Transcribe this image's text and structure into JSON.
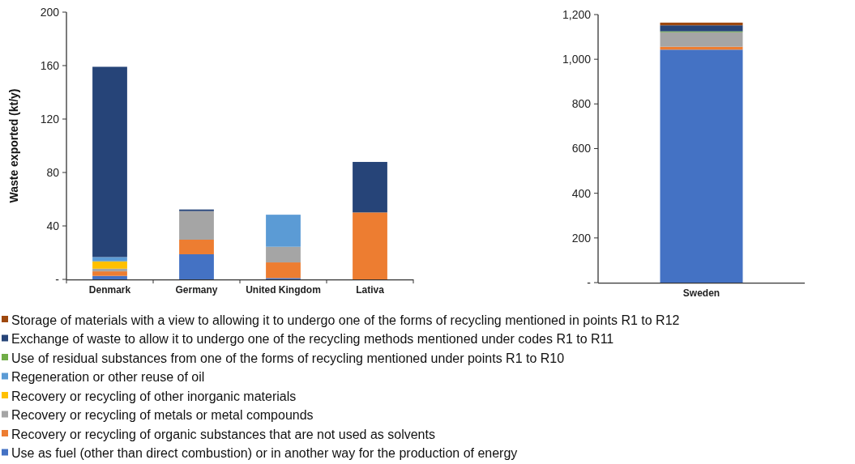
{
  "chart_data": [
    {
      "type": "bar",
      "stacked": true,
      "ylabel": "Waste exported (kt/y)",
      "categories": [
        "Denmark",
        "Germany",
        "United Kingdom",
        "Lativa"
      ],
      "ylim": [
        0,
        200
      ],
      "yticks": [
        {
          "value": 0,
          "label": "-"
        },
        40,
        80,
        120,
        160,
        200
      ],
      "legend": "bottom",
      "series": [
        {
          "name": "Use as fuel (other than direct combustion) or in another way for the production of energy",
          "color": "#4472c4",
          "values": [
            2.6,
            18.8,
            1,
            0
          ]
        },
        {
          "name": "Recovery or recycling of organic substances that are not used as solvents",
          "color": "#ed7d31",
          "values": [
            3.4,
            10.9,
            11.7,
            50.1
          ]
        },
        {
          "name": "Recovery or recycling of metals or metal compounds",
          "color": "#a5a5a5",
          "values": [
            2,
            21.4,
            11.7,
            0
          ]
        },
        {
          "name": "Recovery or recycling of other inorganic materials",
          "color": "#ffc000",
          "values": [
            5.5,
            0,
            0,
            0
          ]
        },
        {
          "name": "Regeneration or other reuse of oil",
          "color": "#5b9bd5",
          "values": [
            3.2,
            0,
            24,
            0
          ]
        },
        {
          "name": "Use of residual substances from one of the forms of recycling mentioned under points R1 to R10",
          "color": "#70ad47",
          "values": [
            0,
            0,
            0,
            0
          ]
        },
        {
          "name": "Exchange of waste to allow it to undergo one of the recycling methods mentioned under codes R1 to R11",
          "color": "#264478",
          "values": [
            142.4,
            1.2,
            0,
            37.8
          ]
        },
        {
          "name": "Storage of materials with a view to allowing it to undergo one of the forms of recycling mentioned in points R1 to R12",
          "color": "#9e480e",
          "values": [
            0,
            0,
            0,
            0
          ]
        }
      ]
    },
    {
      "type": "bar",
      "stacked": true,
      "categories": [
        "Sweden"
      ],
      "ylim": [
        0,
        1200
      ],
      "yticks": [
        {
          "value": 0,
          "label": "-"
        },
        200,
        400,
        600,
        800,
        {
          "value": 1000,
          "label": "1,000"
        },
        {
          "value": 1200,
          "label": "1,200"
        }
      ],
      "series": [
        {
          "color": "#4472c4",
          "values": [
            1043
          ]
        },
        {
          "color": "#ed7d31",
          "values": [
            13
          ]
        },
        {
          "color": "#a5a5a5",
          "values": [
            65
          ]
        },
        {
          "color": "#70ad47",
          "values": [
            4
          ]
        },
        {
          "color": "#264478",
          "values": [
            27
          ]
        },
        {
          "color": "#9e480e",
          "values": [
            12
          ]
        }
      ]
    }
  ]
}
